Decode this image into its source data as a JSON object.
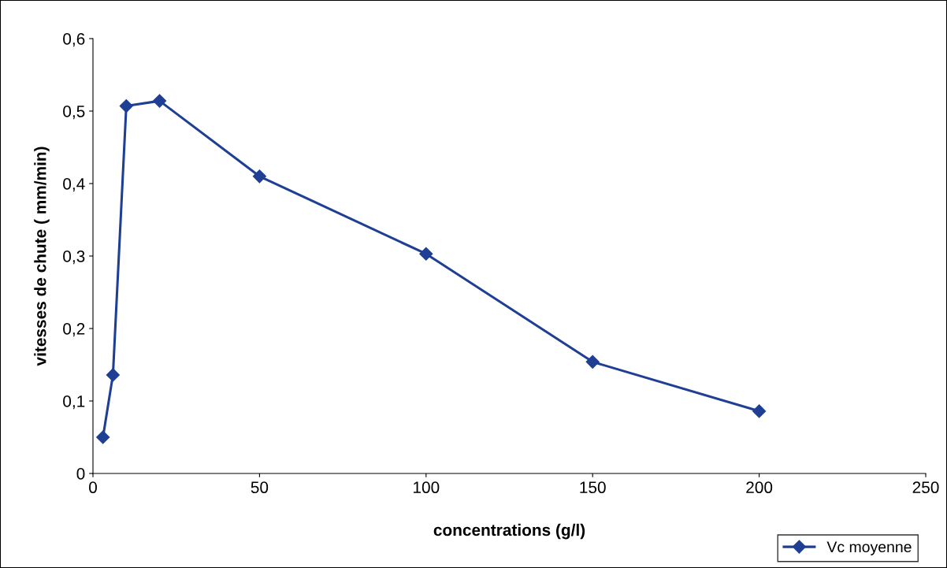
{
  "chart_data": {
    "type": "line",
    "xlabel": "concentrations (g/l)",
    "ylabel": "vitesses de chute ( mm/min)",
    "x": [
      3,
      6,
      10,
      20,
      50,
      100,
      150,
      200
    ],
    "series": [
      {
        "name": "Vc moyenne",
        "color": "#1f3f94",
        "values": [
          0.05,
          0.136,
          0.507,
          0.514,
          0.41,
          0.303,
          0.154,
          0.086
        ]
      }
    ],
    "xlim": [
      0,
      250
    ],
    "xticks": [
      0,
      50,
      100,
      150,
      200,
      250
    ],
    "ylim": [
      0,
      0.6
    ],
    "yticks": [
      {
        "value": 0,
        "label": "0"
      },
      {
        "value": 0.1,
        "label": "0,1"
      },
      {
        "value": 0.2,
        "label": "0,2"
      },
      {
        "value": 0.3,
        "label": "0,3"
      },
      {
        "value": 0.4,
        "label": "0,4"
      },
      {
        "value": 0.5,
        "label": "0,5"
      },
      {
        "value": 0.6,
        "label": "0,6"
      }
    ],
    "marker": "diamond",
    "line_style": "solid",
    "legend": "bottom right",
    "grid": false
  }
}
